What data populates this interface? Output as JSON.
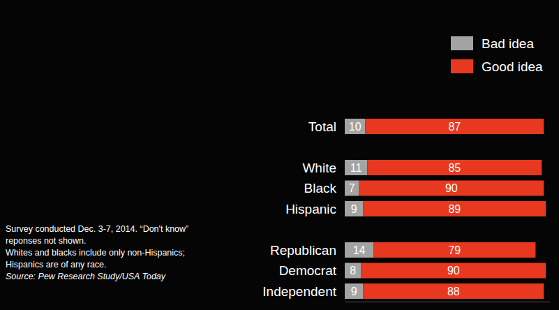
{
  "chart_data": {
    "type": "bar",
    "orientation": "horizontal",
    "stacked": true,
    "data_labels": true,
    "tick_labels": false,
    "legend": "upper right",
    "categories": [
      "Total",
      "White",
      "Black",
      "Hispanic",
      "Republican",
      "Democrat",
      "Independent"
    ],
    "series": [
      {
        "name": "Bad idea",
        "color": "#a3a3a3",
        "values": [
          10,
          11,
          7,
          9,
          14,
          8,
          9
        ]
      },
      {
        "name": "Good idea",
        "color": "#e8381f",
        "values": [
          87,
          85,
          90,
          89,
          79,
          90,
          88
        ]
      }
    ],
    "xlim": [
      0,
      100
    ],
    "annotations": [
      "Survey conducted Dec. 3-7, 2014. “Don't know” reponses not shown.",
      "Whites and blacks include only non-Hispanics; Hispanics are of any race.",
      "Source: Pew Research Study/USA Today"
    ]
  }
}
